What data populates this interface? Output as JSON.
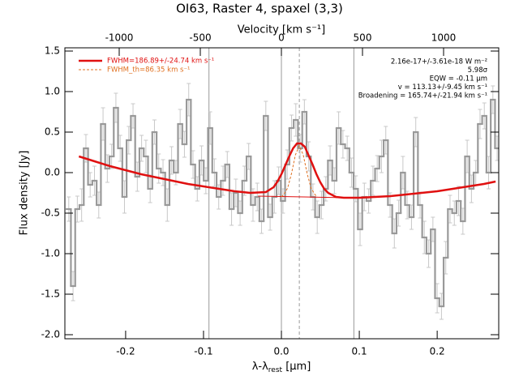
{
  "chart_data": {
    "type": "step",
    "title": "OI63, Raster 4, spaxel (3,3)",
    "x_label": {
      "main": "λ-λ",
      "sub": "rest",
      "unit": " [μm]"
    },
    "x2_label": "Velocity [km s⁻¹]",
    "y_label": "Flux density [Jy]",
    "xlim": [
      -0.278,
      0.279
    ],
    "xticks": [
      -0.2,
      -0.1,
      {
        "value": 0,
        "label": "0.0"
      },
      0.1,
      0.2
    ],
    "x2lim": [
      -1335,
      1340
    ],
    "x2ticks": [
      -1000,
      -500,
      0,
      500,
      1000
    ],
    "ylim": [
      -2.05,
      1.54
    ],
    "yticks": [
      {
        "value": -2,
        "label": "-2.0"
      },
      -1.5,
      {
        "value": -1,
        "label": "-1.0"
      },
      -0.5,
      {
        "value": 0,
        "label": "0.0"
      },
      0.5,
      {
        "value": 1,
        "label": "1.0"
      },
      1.5
    ],
    "vlines": [
      -0.093,
      0,
      0.093
    ],
    "center_line": 0.023,
    "annotations": [
      "2.16e-17+/-3.61e-18 W m⁻²",
      "5.98σ",
      "EQW = -0.11 μm",
      "v = 113.13+/-9.45 km s⁻¹",
      "Broadening = 165.74+/-21.94 km s⁻¹"
    ],
    "spectrum": {
      "color": "#999999",
      "error_color": "#c8c8c8",
      "x": [
        -0.273,
        -0.2675,
        -0.262,
        -0.2565,
        -0.251,
        -0.2455,
        -0.24,
        -0.2345,
        -0.229,
        -0.2235,
        -0.218,
        -0.2125,
        -0.207,
        -0.2015,
        -0.196,
        -0.1905,
        -0.185,
        -0.1795,
        -0.174,
        -0.1685,
        -0.163,
        -0.1575,
        -0.152,
        -0.1465,
        -0.141,
        -0.1355,
        -0.13,
        -0.1245,
        -0.119,
        -0.1135,
        -0.108,
        -0.1025,
        -0.097,
        -0.0915,
        -0.086,
        -0.0805,
        -0.075,
        -0.0695,
        -0.064,
        -0.0585,
        -0.053,
        -0.0475,
        -0.042,
        -0.0365,
        -0.031,
        -0.0255,
        -0.02,
        -0.0145,
        -0.009,
        -0.0035,
        0.002,
        0.0075,
        0.013,
        0.0185,
        0.024,
        0.0295,
        0.035,
        0.0405,
        0.046,
        0.0515,
        0.057,
        0.0625,
        0.068,
        0.0735,
        0.079,
        0.0845,
        0.09,
        0.0955,
        0.101,
        0.1065,
        0.112,
        0.1175,
        0.123,
        0.1285,
        0.134,
        0.1395,
        0.145,
        0.1505,
        0.156,
        0.1615,
        0.167,
        0.1725,
        0.178,
        0.1835,
        0.189,
        0.1945,
        0.2,
        0.2055,
        0.211,
        0.2165,
        0.222,
        0.2275,
        0.233,
        0.2385,
        0.244,
        0.2495,
        0.255,
        0.2605,
        0.266,
        0.2715,
        0.277
      ],
      "values": [
        -0.45,
        -1.4,
        -0.45,
        -0.4,
        0.3,
        -0.15,
        -0.1,
        -0.4,
        0.6,
        0.05,
        0.2,
        0.8,
        0.3,
        -0.3,
        0.4,
        0.7,
        -0.05,
        0.3,
        0.2,
        -0.2,
        0.5,
        0.05,
        0,
        -0.4,
        0.15,
        0,
        0.6,
        0.35,
        0.9,
        0.1,
        -0.2,
        0.15,
        -0.1,
        0.55,
        0,
        -0.3,
        -0.1,
        0.1,
        -0.45,
        -0.25,
        -0.5,
        -0.1,
        0.2,
        -0.4,
        -0.3,
        -0.6,
        0.7,
        -0.55,
        -0.3,
        -0.1,
        -0.35,
        0.1,
        0.55,
        0.65,
        0.3,
        0.75,
        0.2,
        -0.3,
        -0.55,
        -0.4,
        -0.2,
        0.15,
        -0.1,
        0.55,
        0.35,
        0.3,
        0,
        -0.2,
        -0.7,
        -0.3,
        -0.35,
        -0.1,
        0.05,
        0.2,
        0.4,
        -0.4,
        -0.75,
        -0.5,
        0,
        -0.4,
        -0.55,
        0.5,
        -0.4,
        -0.8,
        -1,
        -0.7,
        -1.55,
        -1.65,
        -1.05,
        -0.45,
        -0.5,
        -0.35,
        -0.6,
        0.2,
        -0.2,
        0,
        0.6,
        0.7,
        0,
        0.9,
        0.3
      ],
      "errors": [
        0.15,
        0.18,
        0.16,
        0.2,
        0.17,
        0.15,
        0.18,
        0.16,
        0.2,
        0.17,
        0.15,
        0.18,
        0.16,
        0.2,
        0.17,
        0.15,
        0.18,
        0.16,
        0.2,
        0.17,
        0.15,
        0.18,
        0.16,
        0.2,
        0.17,
        0.15,
        0.18,
        0.16,
        0.2,
        0.17,
        0.15,
        0.18,
        0.16,
        0.2,
        0.17,
        0.15,
        0.18,
        0.16,
        0.2,
        0.17,
        0.15,
        0.18,
        0.16,
        0.2,
        0.17,
        0.15,
        0.18,
        0.16,
        0.2,
        0.17,
        0.15,
        0.18,
        0.16,
        0.2,
        0.17,
        0.15,
        0.18,
        0.16,
        0.2,
        0.17,
        0.15,
        0.18,
        0.16,
        0.2,
        0.17,
        0.15,
        0.18,
        0.16,
        0.2,
        0.17,
        0.15,
        0.18,
        0.16,
        0.2,
        0.17,
        0.15,
        0.18,
        0.16,
        0.2,
        0.17,
        0.15,
        0.18,
        0.16,
        0.2,
        0.17,
        0.15,
        0.18,
        0.16,
        0.2,
        0.17,
        0.15,
        0.18,
        0.16,
        0.2,
        0.17,
        0.15,
        0.18,
        0.16,
        0.2,
        0.17,
        0.15
      ]
    },
    "continuum": {
      "color": "#e01010",
      "x": [
        -0.03,
        0.085
      ],
      "values": [
        -0.29,
        -0.31
      ]
    },
    "series": [
      {
        "name": "FWHM=186.89+/-24.74 km s⁻¹",
        "color": "#e01010",
        "style": "solid",
        "x": [
          -0.26,
          -0.24,
          -0.22,
          -0.2,
          -0.18,
          -0.16,
          -0.14,
          -0.12,
          -0.1,
          -0.08,
          -0.06,
          -0.04,
          -0.02,
          -0.01,
          -0.005,
          0,
          0.005,
          0.01,
          0.015,
          0.02,
          0.025,
          0.03,
          0.035,
          0.04,
          0.045,
          0.05,
          0.055,
          0.06,
          0.07,
          0.08,
          0.1,
          0.12,
          0.14,
          0.16,
          0.18,
          0.2,
          0.22,
          0.24,
          0.26,
          0.275
        ],
        "values": [
          0.2,
          0.14,
          0.08,
          0.03,
          -0.02,
          -0.06,
          -0.1,
          -0.14,
          -0.17,
          -0.2,
          -0.23,
          -0.25,
          -0.24,
          -0.18,
          -0.11,
          -0.02,
          0.09,
          0.2,
          0.3,
          0.36,
          0.36,
          0.32,
          0.21,
          0.1,
          -0.02,
          -0.12,
          -0.2,
          -0.25,
          -0.3,
          -0.31,
          -0.31,
          -0.3,
          -0.29,
          -0.27,
          -0.25,
          -0.23,
          -0.2,
          -0.17,
          -0.14,
          -0.11
        ]
      },
      {
        "name": "FWHM_th=86.35 km s⁻¹",
        "color": "#e07020",
        "style": "dashed",
        "x": [
          0,
          0.003,
          0.008,
          0.013,
          0.018,
          0.023,
          0.028,
          0.033,
          0.038,
          0.043,
          0.046
        ],
        "values": [
          -0.3,
          -0.27,
          -0.19,
          -0.01,
          0.22,
          0.33,
          0.22,
          -0.01,
          -0.19,
          -0.27,
          -0.3
        ]
      }
    ]
  }
}
